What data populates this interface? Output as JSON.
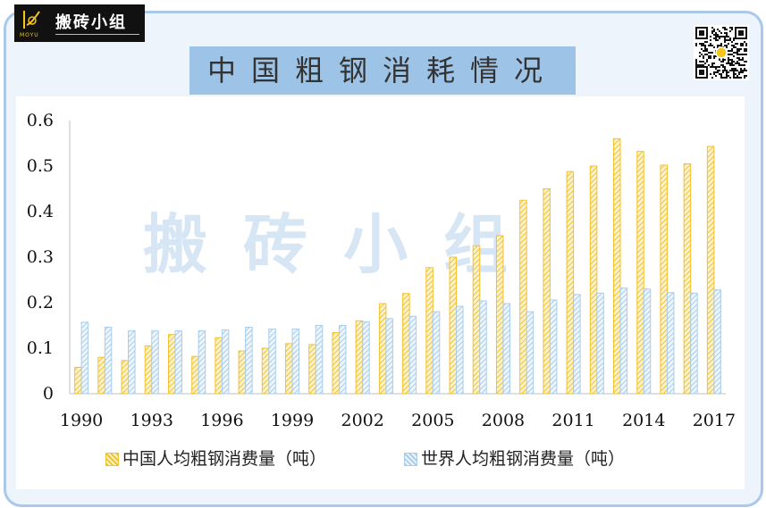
{
  "brand": {
    "name": "搬砖小组",
    "sub": "MOYU"
  },
  "title": "中国粗钢消耗情况",
  "watermark": "搬砖小组",
  "colors": {
    "china": "#f2c12e",
    "world": "#a9cdea",
    "frame": "#a9c8ec",
    "title_bg": "#9dc3e6"
  },
  "chart_data": {
    "type": "bar",
    "x": [
      1990,
      1991,
      1992,
      1993,
      1994,
      1995,
      1996,
      1997,
      1998,
      1999,
      2000,
      2001,
      2002,
      2003,
      2004,
      2005,
      2006,
      2007,
      2008,
      2009,
      2010,
      2011,
      2012,
      2013,
      2014,
      2015,
      2016,
      2017
    ],
    "x_tick_labels": [
      "1990",
      "1993",
      "1996",
      "1999",
      "2002",
      "2005",
      "2008",
      "2011",
      "2014",
      "2017"
    ],
    "y_tick_labels": [
      "0",
      "0.1",
      "0.2",
      "0.3",
      "0.4",
      "0.5",
      "0.6"
    ],
    "ylim": [
      0,
      0.6
    ],
    "grid": false,
    "legend_position": "bottom",
    "series": [
      {
        "name": "中国人均粗钢消费量（吨）",
        "color": "#f2c12e",
        "values": [
          0.058,
          0.08,
          0.073,
          0.105,
          0.13,
          0.082,
          0.123,
          0.094,
          0.1,
          0.11,
          0.108,
          0.134,
          0.16,
          0.198,
          0.22,
          0.277,
          0.3,
          0.325,
          0.347,
          0.425,
          0.45,
          0.488,
          0.5,
          0.56,
          0.532,
          0.502,
          0.505,
          0.543
        ]
      },
      {
        "name": "世界人均粗钢消费量（吨）",
        "color": "#a9cdea",
        "values": [
          0.157,
          0.146,
          0.138,
          0.138,
          0.138,
          0.138,
          0.14,
          0.146,
          0.142,
          0.142,
          0.15,
          0.15,
          0.158,
          0.165,
          0.17,
          0.18,
          0.192,
          0.204,
          0.198,
          0.18,
          0.206,
          0.218,
          0.221,
          0.232,
          0.23,
          0.222,
          0.221,
          0.228
        ]
      }
    ]
  }
}
